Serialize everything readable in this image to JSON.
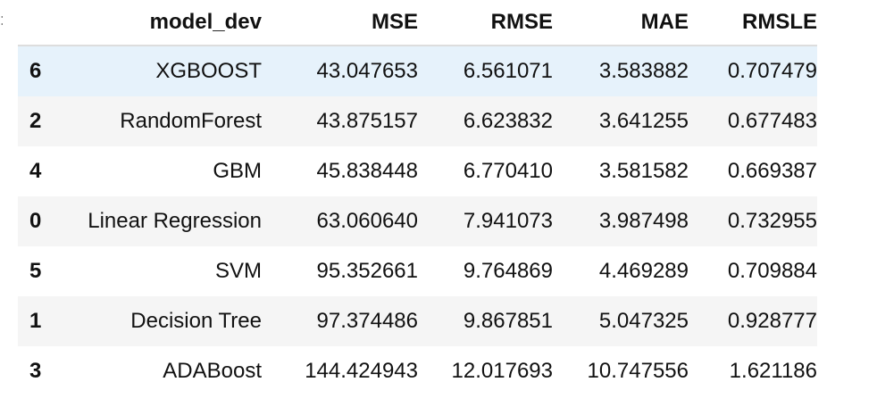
{
  "table": {
    "columns": [
      "",
      "model_dev",
      "MSE",
      "RMSE",
      "MAE",
      "RMSLE"
    ],
    "rows": [
      {
        "index": "6",
        "model": "XGBOOST",
        "MSE": "43.047653",
        "RMSE": "6.561071",
        "MAE": "3.583882",
        "RMSLE": "0.707479",
        "highlight": true
      },
      {
        "index": "2",
        "model": "RandomForest",
        "MSE": "43.875157",
        "RMSE": "6.623832",
        "MAE": "3.641255",
        "RMSLE": "0.677483"
      },
      {
        "index": "4",
        "model": "GBM",
        "MSE": "45.838448",
        "RMSE": "6.770410",
        "MAE": "3.581582",
        "RMSLE": "0.669387"
      },
      {
        "index": "0",
        "model": "Linear Regression",
        "MSE": "63.060640",
        "RMSE": "7.941073",
        "MAE": "3.987498",
        "RMSLE": "0.732955"
      },
      {
        "index": "5",
        "model": "SVM",
        "MSE": "95.352661",
        "RMSE": "9.764869",
        "MAE": "4.469289",
        "RMSLE": "0.709884"
      },
      {
        "index": "1",
        "model": "Decision Tree",
        "MSE": "97.374486",
        "RMSE": "9.867851",
        "MAE": "5.047325",
        "RMSLE": "0.928777"
      },
      {
        "index": "3",
        "model": "ADABoost",
        "MSE": "144.424943",
        "RMSE": "12.017693",
        "MAE": "10.747556",
        "RMSLE": "1.621186"
      }
    ]
  },
  "colors": {
    "highlight_row": "#e6f2fb",
    "striped_row": "#f5f5f5",
    "header_border": "#dddddd"
  }
}
